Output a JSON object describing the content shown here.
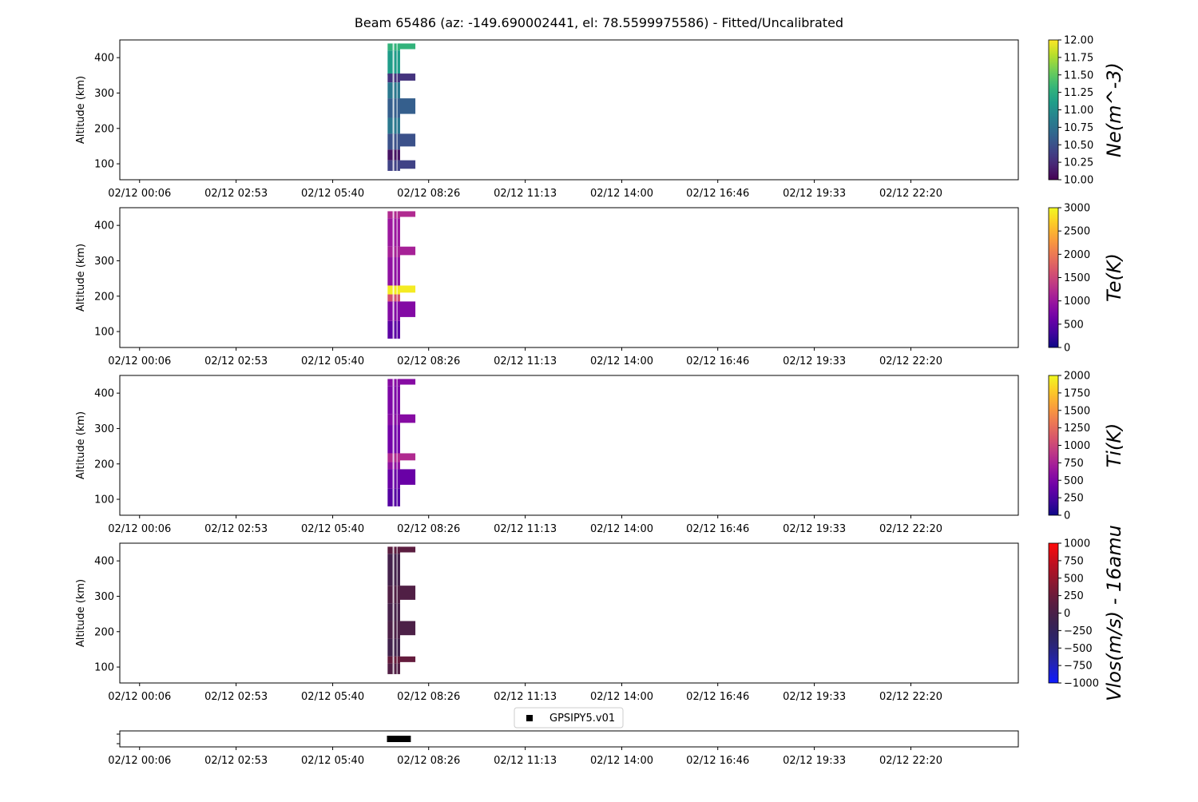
{
  "title": "Beam 65486 (az: -149.690002441, el: 78.5599975586) - Fitted/Uncalibrated",
  "x_tick_labels": [
    "02/12 00:06",
    "02/12 02:53",
    "02/12 05:40",
    "02/12 08:26",
    "02/12 11:13",
    "02/12 14:00",
    "02/12 16:46",
    "02/12 19:33",
    "02/12 22:20"
  ],
  "x_ticks_hours": [
    0.1,
    2.883,
    5.667,
    8.433,
    11.217,
    14.0,
    16.767,
    19.55,
    22.333
  ],
  "x_range_hours": [
    -0.47,
    25.43
  ],
  "colors": {
    "viridis": [
      "#440154",
      "#482878",
      "#3e4989",
      "#31688e",
      "#26828e",
      "#1f9e89",
      "#35b779",
      "#6ece58",
      "#b5de2b",
      "#fde725"
    ],
    "plasma": [
      "#0d0887",
      "#46039f",
      "#7201a8",
      "#9c179e",
      "#bd3786",
      "#d8576b",
      "#ed7953",
      "#fb9f3a",
      "#fdca26",
      "#f0f921"
    ],
    "bwr_dark": [
      "#0f1bff",
      "#2424b0",
      "#2a2570",
      "#3a2350",
      "#5a1d40",
      "#8a1830",
      "#c01020",
      "#ff0a0a"
    ]
  },
  "chart_data": [
    {
      "type": "heatmap",
      "panel": "ne",
      "ylabel": "Altitude (km)",
      "ylim": [
        55,
        450
      ],
      "yticks": [
        100,
        200,
        300,
        400
      ],
      "colorbar_label": "Ne(m^-3)",
      "colorbar_range": [
        10.0,
        12.0
      ],
      "colorbar_ticks": [
        "10.00",
        "10.25",
        "10.50",
        "10.75",
        "11.00",
        "11.25",
        "11.50",
        "11.75",
        "12.00"
      ],
      "colormap": "viridis",
      "time_window_hours": [
        7.25,
        8.05
      ],
      "altitude_range_km": [
        80,
        440
      ],
      "bands": [
        {
          "alt": [
            420,
            440
          ],
          "value": 11.3
        },
        {
          "alt": [
            350,
            420
          ],
          "value": 11.1
        },
        {
          "alt": [
            330,
            355
          ],
          "value": 10.3
        },
        {
          "alt": [
            285,
            330
          ],
          "value": 10.8
        },
        {
          "alt": [
            230,
            285
          ],
          "value": 10.6
        },
        {
          "alt": [
            185,
            230
          ],
          "value": 10.8
        },
        {
          "alt": [
            140,
            185
          ],
          "value": 10.5
        },
        {
          "alt": [
            110,
            140
          ],
          "value": 10.1
        },
        {
          "alt": [
            80,
            110
          ],
          "value": 10.4
        }
      ]
    },
    {
      "type": "heatmap",
      "panel": "te",
      "ylabel": "Altitude (km)",
      "ylim": [
        55,
        450
      ],
      "yticks": [
        100,
        200,
        300,
        400
      ],
      "colorbar_label": "Te(K)",
      "colorbar_range": [
        0,
        3000
      ],
      "colorbar_ticks": [
        "0",
        "500",
        "1000",
        "1500",
        "2000",
        "2500",
        "3000"
      ],
      "colormap": "plasma",
      "time_window_hours": [
        7.25,
        8.05
      ],
      "altitude_range_km": [
        80,
        440
      ],
      "bands": [
        {
          "alt": [
            420,
            440
          ],
          "value": 1200
        },
        {
          "alt": [
            340,
            420
          ],
          "value": 1000
        },
        {
          "alt": [
            310,
            340
          ],
          "value": 1100
        },
        {
          "alt": [
            230,
            310
          ],
          "value": 900
        },
        {
          "alt": [
            205,
            230
          ],
          "value": 2900
        },
        {
          "alt": [
            185,
            205
          ],
          "value": 1600
        },
        {
          "alt": [
            130,
            185
          ],
          "value": 800
        },
        {
          "alt": [
            80,
            130
          ],
          "value": 500
        }
      ]
    },
    {
      "type": "heatmap",
      "panel": "ti",
      "ylabel": "Altitude (km)",
      "ylim": [
        55,
        450
      ],
      "yticks": [
        100,
        200,
        300,
        400
      ],
      "colorbar_label": "Ti(K)",
      "colorbar_range": [
        0,
        2000
      ],
      "colorbar_ticks": [
        "0",
        "250",
        "500",
        "750",
        "1000",
        "1250",
        "1500",
        "1750",
        "2000"
      ],
      "colormap": "plasma",
      "time_window_hours": [
        7.25,
        8.05
      ],
      "altitude_range_km": [
        80,
        440
      ],
      "bands": [
        {
          "alt": [
            420,
            440
          ],
          "value": 550
        },
        {
          "alt": [
            340,
            420
          ],
          "value": 500
        },
        {
          "alt": [
            310,
            340
          ],
          "value": 550
        },
        {
          "alt": [
            230,
            310
          ],
          "value": 450
        },
        {
          "alt": [
            205,
            230
          ],
          "value": 800
        },
        {
          "alt": [
            185,
            205
          ],
          "value": 600
        },
        {
          "alt": [
            130,
            185
          ],
          "value": 400
        },
        {
          "alt": [
            80,
            130
          ],
          "value": 300
        }
      ]
    },
    {
      "type": "heatmap",
      "panel": "vlos",
      "ylabel": "Altitude (km)",
      "ylim": [
        55,
        450
      ],
      "yticks": [
        100,
        200,
        300,
        400
      ],
      "colorbar_label": "Vlos(m/s) - 16amu",
      "colorbar_range": [
        -1000,
        1000
      ],
      "colorbar_ticks": [
        "−1000",
        "−750",
        "−500",
        "−250",
        "0",
        "250",
        "500",
        "750",
        "1000"
      ],
      "colormap": "bwr_dark",
      "time_window_hours": [
        7.25,
        8.05
      ],
      "altitude_range_km": [
        80,
        440
      ],
      "bands": [
        {
          "alt": [
            420,
            440
          ],
          "value": 150
        },
        {
          "alt": [
            330,
            420
          ],
          "value": -50
        },
        {
          "alt": [
            280,
            330
          ],
          "value": 50
        },
        {
          "alt": [
            230,
            280
          ],
          "value": -30
        },
        {
          "alt": [
            180,
            230
          ],
          "value": 20
        },
        {
          "alt": [
            130,
            180
          ],
          "value": -80
        },
        {
          "alt": [
            110,
            130
          ],
          "value": 200
        },
        {
          "alt": [
            80,
            110
          ],
          "value": 60
        }
      ]
    },
    {
      "type": "scatter",
      "panel": "scan",
      "legend": [
        "GPSIPY5.v01"
      ],
      "legend_placement": "top-center",
      "marker_color": "#000000",
      "x_hours": [
        7.3,
        7.35,
        7.4,
        7.45,
        7.5,
        7.55,
        7.6,
        7.65,
        7.7,
        7.75,
        7.8,
        7.85
      ]
    }
  ]
}
